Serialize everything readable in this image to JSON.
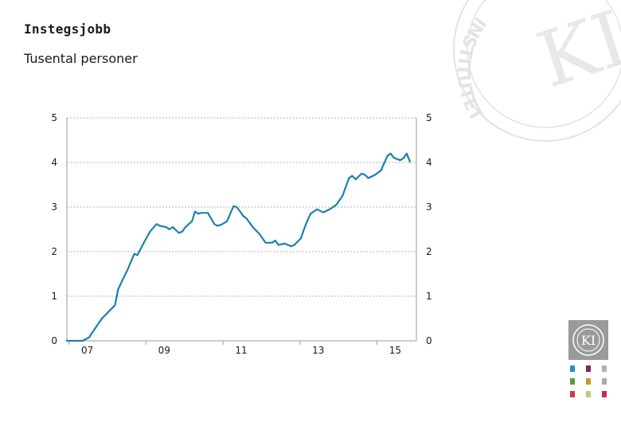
{
  "page": {
    "title": "Instegsjobb",
    "subtitle": "Tusental personer"
  },
  "chart_data": {
    "type": "line",
    "title": "Instegsjobb",
    "subtitle": "Tusental personer",
    "xlabel": "",
    "ylabel": "",
    "ylim": [
      0,
      5
    ],
    "xlim": [
      2006.67,
      2015.75
    ],
    "yticks": [
      0,
      1,
      2,
      3,
      4,
      5
    ],
    "yticks_right": [
      0,
      1,
      2,
      3,
      4,
      5
    ],
    "xtick_labels": [
      "07",
      "09",
      "11",
      "13",
      "15"
    ],
    "xtick_values": [
      2007.2,
      2009.2,
      2011.2,
      2013.2,
      2015.2
    ],
    "grid": true,
    "series": [
      {
        "name": "Instegsjobb",
        "color": "#1a80b0",
        "x": [
          2006.67,
          2006.92,
          2007.08,
          2007.25,
          2007.42,
          2007.58,
          2007.75,
          2007.92,
          2008.0,
          2008.08,
          2008.25,
          2008.42,
          2008.5,
          2008.67,
          2008.83,
          2009.0,
          2009.08,
          2009.25,
          2009.33,
          2009.42,
          2009.58,
          2009.67,
          2009.75,
          2009.92,
          2010.0,
          2010.08,
          2010.17,
          2010.33,
          2010.5,
          2010.58,
          2010.67,
          2010.83,
          2011.0,
          2011.08,
          2011.17,
          2011.25,
          2011.33,
          2011.5,
          2011.67,
          2011.83,
          2012.0,
          2012.08,
          2012.17,
          2012.33,
          2012.5,
          2012.58,
          2012.75,
          2012.83,
          2012.92,
          2013.0,
          2013.17,
          2013.33,
          2013.5,
          2013.67,
          2013.83,
          2014.0,
          2014.08,
          2014.17,
          2014.33,
          2014.42,
          2014.5,
          2014.67,
          2014.83,
          2015.0,
          2015.08,
          2015.17,
          2015.33,
          2015.42,
          2015.5,
          2015.58
        ],
        "values": [
          0.0,
          0.0,
          0.0,
          0.08,
          0.3,
          0.5,
          0.65,
          0.8,
          1.15,
          1.3,
          1.6,
          1.95,
          1.92,
          2.2,
          2.45,
          2.62,
          2.58,
          2.55,
          2.5,
          2.55,
          2.42,
          2.45,
          2.55,
          2.68,
          2.9,
          2.85,
          2.87,
          2.87,
          2.62,
          2.58,
          2.6,
          2.68,
          3.02,
          3.0,
          2.9,
          2.8,
          2.75,
          2.55,
          2.4,
          2.2,
          2.2,
          2.25,
          2.15,
          2.18,
          2.12,
          2.15,
          2.3,
          2.5,
          2.7,
          2.85,
          2.95,
          2.88,
          2.95,
          3.05,
          3.25,
          3.65,
          3.7,
          3.62,
          3.75,
          3.72,
          3.65,
          3.72,
          3.82,
          4.15,
          4.2,
          4.1,
          4.05,
          4.1,
          4.2,
          4.02
        ]
      }
    ]
  },
  "watermark": {
    "letters": "INSTITUTET",
    "mark": "KI"
  },
  "logo": {
    "mark": "KI"
  },
  "palette": [
    "#2a8fc4",
    "#7a2a5a",
    "#9fb7c4",
    "#5a9a3a",
    "#c89a2a",
    "#a9aaa9",
    "#d63a3a",
    "#b5d07a",
    "#c62a4a"
  ]
}
